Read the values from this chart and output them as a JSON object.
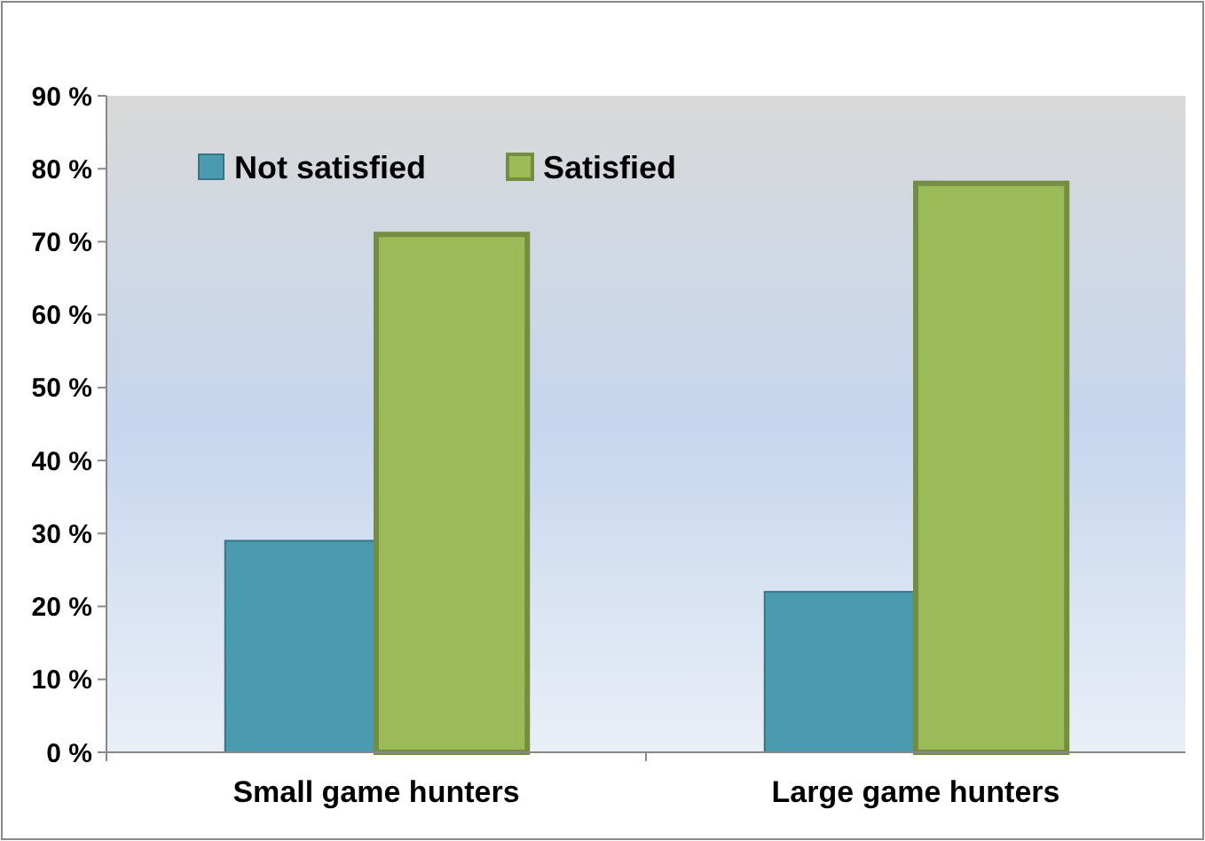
{
  "chart_data": {
    "type": "bar",
    "categories": [
      "Small game hunters",
      "Large game hunters"
    ],
    "series": [
      {
        "name": "Not satisfied",
        "color": "#4a9bb0",
        "values": [
          29,
          22
        ]
      },
      {
        "name": "Satisfied",
        "color": "#9bbb59",
        "values": [
          71,
          78
        ]
      }
    ],
    "ylim": [
      0,
      90
    ],
    "yticks": [
      {
        "value": 0,
        "label": "0 %"
      },
      {
        "value": 10,
        "label": "10 %"
      },
      {
        "value": 20,
        "label": "20 %"
      },
      {
        "value": 30,
        "label": "30 %"
      },
      {
        "value": 40,
        "label": "40 %"
      },
      {
        "value": 50,
        "label": "50 %"
      },
      {
        "value": 60,
        "label": "60 %"
      },
      {
        "value": 70,
        "label": "70 %"
      },
      {
        "value": 80,
        "label": "80 %"
      },
      {
        "value": 90,
        "label": "90 %"
      }
    ],
    "grid": false,
    "legend": "top left"
  }
}
